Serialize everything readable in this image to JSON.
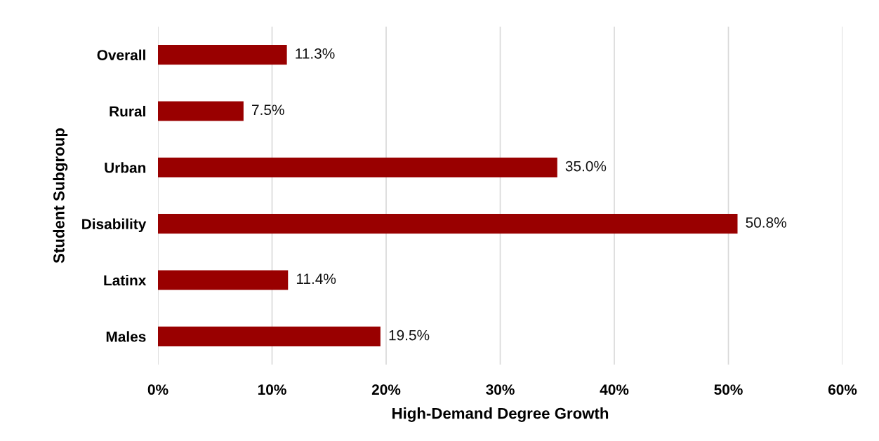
{
  "chart_data": {
    "type": "bar",
    "orientation": "horizontal",
    "xlabel": "High-Demand Degree Growth",
    "ylabel": "Student Subgroup",
    "categories": [
      "Overall",
      "Rural",
      "Urban",
      "Disability",
      "Latinx",
      "Males"
    ],
    "values": [
      11.3,
      7.5,
      35.0,
      50.8,
      11.4,
      19.5
    ],
    "value_labels": [
      "11.3%",
      "7.5%",
      "35.0%",
      "50.8%",
      "11.4%",
      "19.5%"
    ],
    "color": "#990000",
    "xlim": [
      0,
      60
    ],
    "xticks": [
      {
        "value": 0,
        "label": "0%"
      },
      {
        "value": 10,
        "label": "10%"
      },
      {
        "value": 20,
        "label": "20%"
      },
      {
        "value": 30,
        "label": "30%"
      },
      {
        "value": 40,
        "label": "40%"
      },
      {
        "value": 50,
        "label": "50%"
      },
      {
        "value": 60,
        "label": "60%"
      }
    ],
    "grid": "x",
    "legend": false
  }
}
